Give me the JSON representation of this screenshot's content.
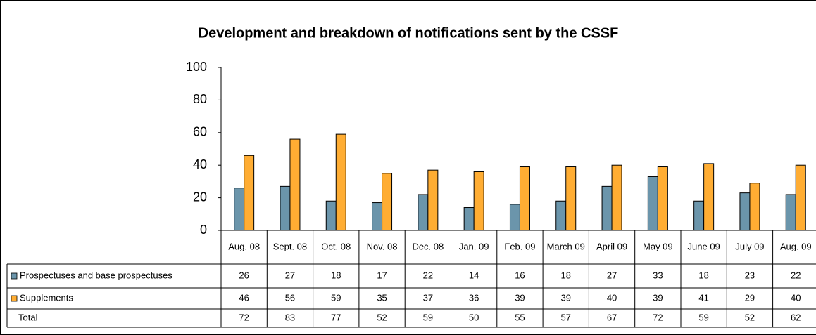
{
  "chart_data": {
    "type": "bar",
    "title": "Development and breakdown of notifications sent by the CSSF",
    "categories": [
      "Aug. 08",
      "Sept. 08",
      "Oct. 08",
      "Nov. 08",
      "Dec. 08",
      "Jan. 09",
      "Feb. 09",
      "March 09",
      "April 09",
      "May 09",
      "June 09",
      "July 09",
      "Aug. 09"
    ],
    "series": [
      {
        "name": "Prospectuses and base prospectuses",
        "color": "#6b95ab",
        "values": [
          26,
          27,
          18,
          17,
          22,
          14,
          16,
          18,
          27,
          33,
          18,
          23,
          22
        ]
      },
      {
        "name": "Supplements",
        "color": "#ffad33",
        "values": [
          46,
          56,
          59,
          35,
          37,
          36,
          39,
          39,
          40,
          39,
          41,
          29,
          40
        ]
      }
    ],
    "total": {
      "name": "Total",
      "values": [
        72,
        83,
        77,
        52,
        59,
        50,
        55,
        57,
        67,
        72,
        59,
        52,
        62
      ]
    },
    "ylim": [
      0,
      100
    ],
    "yticks": [
      0,
      20,
      40,
      60,
      80,
      100
    ],
    "grid": false
  }
}
